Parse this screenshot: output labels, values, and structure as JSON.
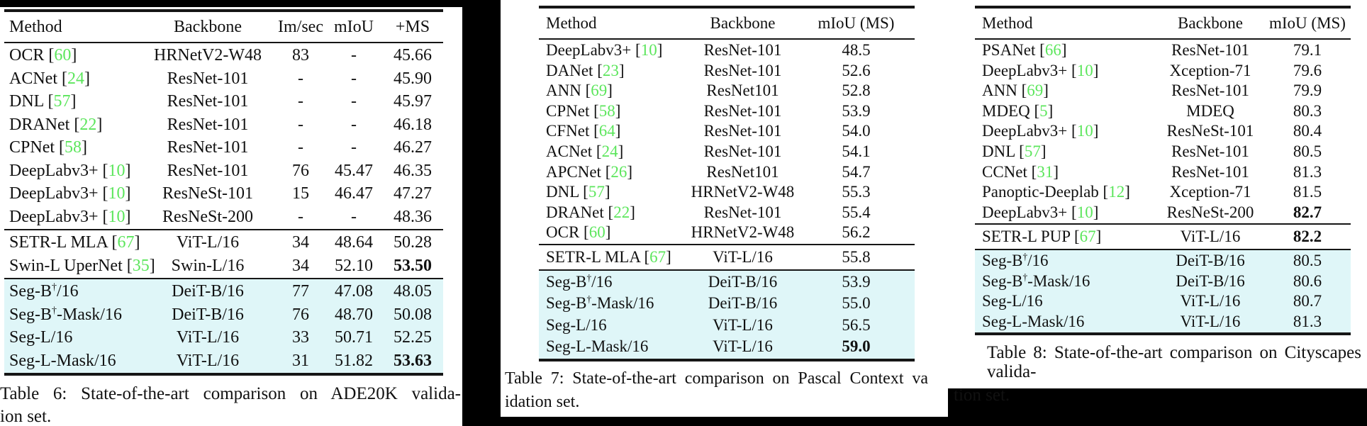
{
  "colors": {
    "citation_green": "#5ce65c",
    "row_highlight_cyan": "#dff6f8",
    "page_background": "#000000",
    "paper_white": "#ffffff",
    "rule_color": "#161616",
    "text_color": "#111111"
  },
  "tables": [
    {
      "name": "ADE20K state-of-the-art comparison",
      "columns": [
        "Method",
        "Backbone",
        "Im/sec",
        "mIoU",
        "+MS"
      ],
      "groups": [
        {
          "highlight": false,
          "rows": [
            {
              "method": "OCR",
              "ref": "60",
              "cells": [
                "HRNetV2-W48",
                "83",
                "-",
                "45.66"
              ],
              "bold": []
            },
            {
              "method": "ACNet",
              "ref": "24",
              "cells": [
                "ResNet-101",
                "-",
                "-",
                "45.90"
              ],
              "bold": []
            },
            {
              "method": "DNL",
              "ref": "57",
              "cells": [
                "ResNet-101",
                "-",
                "-",
                "45.97"
              ],
              "bold": []
            },
            {
              "method": "DRANet",
              "ref": "22",
              "cells": [
                "ResNet-101",
                "-",
                "-",
                "46.18"
              ],
              "bold": []
            },
            {
              "method": "CPNet",
              "ref": "58",
              "cells": [
                "ResNet-101",
                "-",
                "-",
                "46.27"
              ],
              "bold": []
            },
            {
              "method": "DeepLabv3+",
              "ref": "10",
              "cells": [
                "ResNet-101",
                "76",
                "45.47",
                "46.35"
              ],
              "bold": []
            },
            {
              "method": "DeepLabv3+",
              "ref": "10",
              "cells": [
                "ResNeSt-101",
                "15",
                "46.47",
                "47.27"
              ],
              "bold": []
            },
            {
              "method": "DeepLabv3+",
              "ref": "10",
              "cells": [
                "ResNeSt-200",
                "-",
                "-",
                "48.36"
              ],
              "bold": []
            }
          ]
        },
        {
          "highlight": false,
          "rows": [
            {
              "method": "SETR-L MLA",
              "ref": "67",
              "cells": [
                "ViT-L/16",
                "34",
                "48.64",
                "50.28"
              ],
              "bold": []
            },
            {
              "method": "Swin-L UperNet",
              "ref": "35",
              "cells": [
                "Swin-L/16",
                "34",
                "52.10",
                "53.50"
              ],
              "bold": [
                3
              ]
            }
          ]
        },
        {
          "highlight": true,
          "rows": [
            {
              "method": "Seg-B{†}/16",
              "cells": [
                "DeiT-B/16",
                "77",
                "47.08",
                "48.05"
              ],
              "bold": []
            },
            {
              "method": "Seg-B{†}-Mask/16",
              "cells": [
                "DeiT-B/16",
                "76",
                "48.70",
                "50.08"
              ],
              "bold": []
            },
            {
              "method": "Seg-L/16",
              "cells": [
                "ViT-L/16",
                "33",
                "50.71",
                "52.25"
              ],
              "bold": []
            },
            {
              "method": "Seg-L-Mask/16",
              "cells": [
                "ViT-L/16",
                "31",
                "51.82",
                "53.63"
              ],
              "bold": [
                3
              ]
            }
          ]
        }
      ],
      "caption": {
        "line1": "Table 6:  State-of-the-art comparison on ADE20K valida-",
        "line2": "ion set."
      }
    },
    {
      "name": "Pascal Context state-of-the-art comparison",
      "columns": [
        "Method",
        "Backbone",
        "mIoU (MS)"
      ],
      "groups": [
        {
          "highlight": false,
          "rows": [
            {
              "method": "DeepLabv3+",
              "ref": "10",
              "cells": [
                "ResNet-101",
                "48.5"
              ],
              "bold": []
            },
            {
              "method": "DANet",
              "ref": "23",
              "cells": [
                "ResNet-101",
                "52.6"
              ],
              "bold": []
            },
            {
              "method": "ANN",
              "ref": "69",
              "cells": [
                "ResNet101",
                "52.8"
              ],
              "bold": []
            },
            {
              "method": "CPNet",
              "ref": "58",
              "cells": [
                "ResNet-101",
                "53.9"
              ],
              "bold": []
            },
            {
              "method": "CFNet",
              "ref": "64",
              "cells": [
                "ResNet-101",
                "54.0"
              ],
              "bold": []
            },
            {
              "method": "ACNet",
              "ref": "24",
              "cells": [
                "ResNet-101",
                "54.1"
              ],
              "bold": []
            },
            {
              "method": "APCNet",
              "ref": "26",
              "cells": [
                "ResNet101",
                "54.7"
              ],
              "bold": []
            },
            {
              "method": "DNL",
              "ref": "57",
              "cells": [
                "HRNetV2-W48",
                "55.3"
              ],
              "bold": []
            },
            {
              "method": "DRANet",
              "ref": "22",
              "cells": [
                "ResNet-101",
                "55.4"
              ],
              "bold": []
            },
            {
              "method": "OCR",
              "ref": "60",
              "cells": [
                "HRNetV2-W48",
                "56.2"
              ],
              "bold": []
            }
          ]
        },
        {
          "highlight": false,
          "rows": [
            {
              "method": "SETR-L MLA",
              "ref": "67",
              "cells": [
                "ViT-L/16",
                "55.8"
              ],
              "bold": []
            }
          ]
        },
        {
          "highlight": true,
          "rows": [
            {
              "method": "Seg-B{†}/16",
              "cells": [
                "DeiT-B/16",
                "53.9"
              ],
              "bold": []
            },
            {
              "method": "Seg-B{†}-Mask/16",
              "cells": [
                "DeiT-B/16",
                "55.0"
              ],
              "bold": []
            },
            {
              "method": "Seg-L/16",
              "cells": [
                "ViT-L/16",
                "56.5"
              ],
              "bold": []
            },
            {
              "method": "Seg-L-Mask/16",
              "cells": [
                "ViT-L/16",
                "59.0"
              ],
              "bold": [
                1
              ]
            }
          ]
        }
      ],
      "caption": {
        "line1": "Table 7: State-of-the-art comparison on Pascal Context va",
        "line2": "idation set."
      }
    },
    {
      "name": "Cityscapes state-of-the-art comparison",
      "columns": [
        "Method",
        "Backbone",
        "mIoU (MS)"
      ],
      "groups": [
        {
          "highlight": false,
          "rows": [
            {
              "method": "PSANet",
              "ref": "66",
              "cells": [
                "ResNet-101",
                "79.1"
              ],
              "bold": []
            },
            {
              "method": "DeepLabv3+",
              "ref": "10",
              "cells": [
                "Xception-71",
                "79.6"
              ],
              "bold": []
            },
            {
              "method": "ANN",
              "ref": "69",
              "cells": [
                "ResNet-101",
                "79.9"
              ],
              "bold": []
            },
            {
              "method": "MDEQ",
              "ref": "5",
              "cells": [
                "MDEQ",
                "80.3"
              ],
              "bold": []
            },
            {
              "method": "DeepLabv3+",
              "ref": "10",
              "cells": [
                "ResNeSt-101",
                "80.4"
              ],
              "bold": []
            },
            {
              "method": "DNL",
              "ref": "57",
              "cells": [
                "ResNet-101",
                "80.5"
              ],
              "bold": []
            },
            {
              "method": "CCNet",
              "ref": "31",
              "cells": [
                "ResNet-101",
                "81.3"
              ],
              "bold": []
            },
            {
              "method": "Panoptic-Deeplab",
              "ref": "12",
              "cells": [
                "Xception-71",
                "81.5"
              ],
              "bold": []
            },
            {
              "method": "DeepLabv3+",
              "ref": "10",
              "cells": [
                "ResNeSt-200",
                "82.7"
              ],
              "bold": [
                1
              ]
            }
          ]
        },
        {
          "highlight": false,
          "rows": [
            {
              "method": "SETR-L PUP",
              "ref": "67",
              "cells": [
                "ViT-L/16",
                "82.2"
              ],
              "bold": [
                1
              ]
            }
          ]
        },
        {
          "highlight": true,
          "rows": [
            {
              "method": "Seg-B{†}/16",
              "cells": [
                "DeiT-B/16",
                "80.5"
              ],
              "bold": []
            },
            {
              "method": "Seg-B{†}-Mask/16",
              "cells": [
                "DeiT-B/16",
                "80.6"
              ],
              "bold": []
            },
            {
              "method": "Seg-L/16",
              "cells": [
                "ViT-L/16",
                "80.7"
              ],
              "bold": []
            },
            {
              "method": "Seg-L-Mask/16",
              "cells": [
                "ViT-L/16",
                "81.3"
              ],
              "bold": []
            }
          ]
        }
      ],
      "caption": {
        "line1": "Table 8: State-of-the-art comparison on Cityscapes valida-",
        "line2": "tion set."
      }
    }
  ]
}
